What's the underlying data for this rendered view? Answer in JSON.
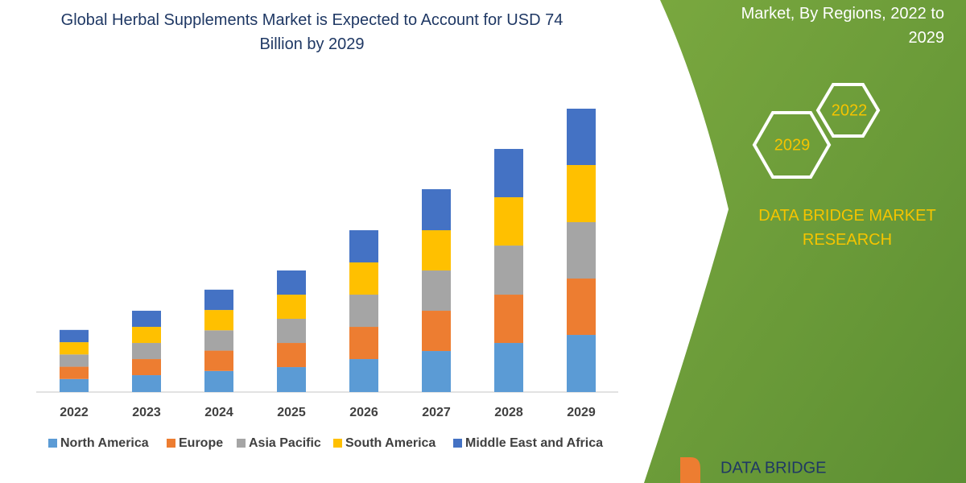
{
  "chart_data": {
    "type": "stacked-bar",
    "title": "Global Herbal Supplements Market is Expected to Account for USD 74 Billion by 2029",
    "subtitle": "Market, By Regions, 2022 to 2029",
    "categories": [
      "2022",
      "2023",
      "2024",
      "2025",
      "2026",
      "2027",
      "2028",
      "2029"
    ],
    "series": [
      {
        "name": "North America",
        "color": "#5b9bd5",
        "values": [
          3.4,
          4.4,
          5.5,
          6.5,
          8.6,
          10.7,
          12.8,
          14.9
        ]
      },
      {
        "name": "Europe",
        "color": "#ed7d31",
        "values": [
          3.2,
          4.2,
          5.3,
          6.3,
          8.4,
          10.5,
          12.6,
          14.7
        ]
      },
      {
        "name": "Asia Pacific",
        "color": "#a5a5a5",
        "values": [
          3.2,
          4.2,
          5.3,
          6.3,
          8.4,
          10.5,
          12.8,
          14.7
        ]
      },
      {
        "name": "South America",
        "color": "#ffc000",
        "values": [
          3.2,
          4.2,
          5.3,
          6.3,
          8.4,
          10.5,
          12.6,
          14.9
        ]
      },
      {
        "name": "Middle East and Africa",
        "color": "#4472c4",
        "values": [
          3.2,
          4.2,
          5.3,
          6.3,
          8.4,
          10.7,
          12.6,
          14.7
        ]
      }
    ],
    "badges": [
      "2022",
      "2029"
    ],
    "brand": "DATA BRIDGE MARKET RESEARCH",
    "logo": "DATA BRIDGE"
  }
}
